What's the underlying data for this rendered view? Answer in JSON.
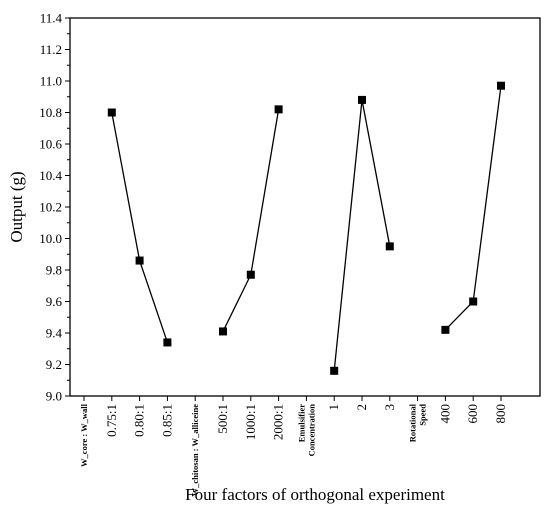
{
  "chart_data": {
    "type": "line",
    "xlabel": "Four factors of orthogonal experiment",
    "ylabel": "Output (g)",
    "ylim": [
      9.0,
      11.4
    ],
    "yticks": [
      "9.0",
      "9.2",
      "9.4",
      "9.6",
      "9.8",
      "10.0",
      "10.2",
      "10.4",
      "10.6",
      "10.8",
      "11.0",
      "11.2",
      "11.4"
    ],
    "grid": false,
    "legend": "none",
    "categories": [
      {
        "label": "W_core : W_wall",
        "kind": "header"
      },
      {
        "label": "0.75:1",
        "kind": "level"
      },
      {
        "label": "0.80:1",
        "kind": "level"
      },
      {
        "label": "0.85:1",
        "kind": "level"
      },
      {
        "label": "W_chitosan : W_alliceine",
        "kind": "header"
      },
      {
        "label": "500:1",
        "kind": "level"
      },
      {
        "label": "1000:1",
        "kind": "level"
      },
      {
        "label": "2000:1",
        "kind": "level"
      },
      {
        "label": "Emulsifier Concentration",
        "kind": "header"
      },
      {
        "label": "1",
        "kind": "level"
      },
      {
        "label": "2",
        "kind": "level"
      },
      {
        "label": "3",
        "kind": "level"
      },
      {
        "label": "Rotational Speed",
        "kind": "header"
      },
      {
        "label": "400",
        "kind": "level"
      },
      {
        "label": "600",
        "kind": "level"
      },
      {
        "label": "800",
        "kind": "level"
      }
    ],
    "series": [
      {
        "factor": "W_core : W_wall",
        "x": [
          "0.75:1",
          "0.80:1",
          "0.85:1"
        ],
        "values": [
          10.8,
          9.86,
          9.34
        ]
      },
      {
        "factor": "W_chitosan : W_alliceine",
        "x": [
          "500:1",
          "1000:1",
          "2000:1"
        ],
        "values": [
          9.41,
          9.77,
          10.82
        ]
      },
      {
        "factor": "Emulsifier Concentration",
        "x": [
          "1",
          "2",
          "3"
        ],
        "values": [
          9.16,
          10.88,
          9.95
        ]
      },
      {
        "factor": "Rotational Speed",
        "x": [
          "400",
          "600",
          "800"
        ],
        "values": [
          9.42,
          9.6,
          10.97
        ]
      }
    ]
  }
}
